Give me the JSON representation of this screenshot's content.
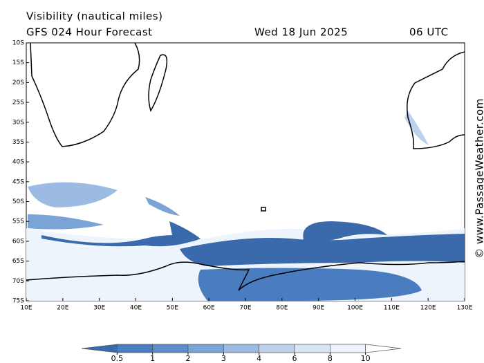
{
  "header": {
    "title": "Visibility (nautical miles)",
    "subtitle": "GFS 024 Hour Forecast",
    "date": "Wed 18 Jun 2025",
    "time": "06 UTC"
  },
  "map": {
    "lat_labels": [
      "10S",
      "15S",
      "20S",
      "25S",
      "30S",
      "35S",
      "40S",
      "45S",
      "50S",
      "55S",
      "60S",
      "65S",
      "70S",
      "75S"
    ],
    "lon_labels": [
      "10E",
      "20E",
      "30E",
      "40E",
      "50E",
      "60E",
      "70E",
      "80E",
      "90E",
      "100E",
      "110E",
      "120E",
      "130E"
    ]
  },
  "colorbar": {
    "ticks": [
      0.5,
      1,
      2,
      3,
      4,
      6,
      8,
      10
    ],
    "colors": [
      "#3a6aab",
      "#4a7dbf",
      "#5b8ccb",
      "#7aa3d6",
      "#9bbbe2",
      "#bcd2ec",
      "#d8e5f4",
      "#edf3fa",
      "#ffffff"
    ]
  },
  "watermark": "© www.PassageWeather.com"
}
